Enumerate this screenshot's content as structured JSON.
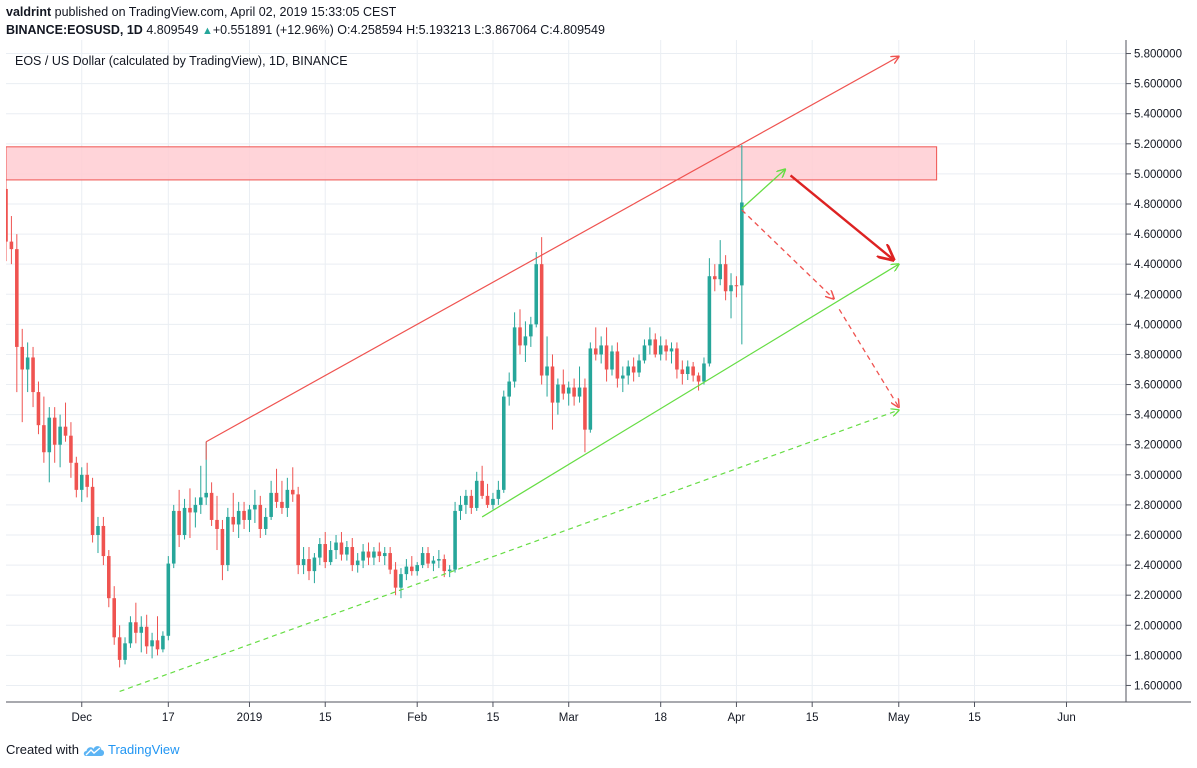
{
  "header": {
    "author": "valdrint",
    "published": "published on TradingView.com, April 02, 2019 15:33:05 CEST"
  },
  "ticker": {
    "symbol": "BINANCE:EOSUSD, 1D",
    "last": "4.809549",
    "change": "+0.551891 (+12.96%)",
    "o_label": "O:",
    "o": "4.258594",
    "h_label": "H:",
    "h": "5.193213",
    "l_label": "L:",
    "l": "3.867064",
    "c_label": "C:",
    "c": "4.809549",
    "up_color": "#26a69a"
  },
  "footer": {
    "created": "Created with",
    "brand": "TradingView",
    "logo_icon": "tradingview-cloud-icon"
  },
  "chart_data": {
    "type": "candlestick",
    "legend": "EOS / US Dollar (calculated by TradingView), 1D, BINANCE",
    "y_axis_side": "right",
    "ylim": [
      1.49,
      5.89
    ],
    "xlim": [
      "2018-11-17",
      "2019-06-12"
    ],
    "y_ticks": [
      "5.800000",
      "5.600000",
      "5.400000",
      "5.200000",
      "5.000000",
      "4.800000",
      "4.600000",
      "4.400000",
      "4.200000",
      "4.000000",
      "3.800000",
      "3.600000",
      "3.400000",
      "3.200000",
      "3.000000",
      "2.800000",
      "2.600000",
      "2.400000",
      "2.200000",
      "2.000000",
      "1.800000",
      "1.600000"
    ],
    "x_ticks": [
      {
        "date": "2018-12-01",
        "label": "Dec"
      },
      {
        "date": "2018-12-17",
        "label": "17"
      },
      {
        "date": "2019-01-01",
        "label": "2019"
      },
      {
        "date": "2019-01-15",
        "label": "15"
      },
      {
        "date": "2019-02-01",
        "label": "Feb"
      },
      {
        "date": "2019-02-15",
        "label": "15"
      },
      {
        "date": "2019-03-01",
        "label": "Mar"
      },
      {
        "date": "2019-03-18",
        "label": "18"
      },
      {
        "date": "2019-04-01",
        "label": "Apr"
      },
      {
        "date": "2019-04-15",
        "label": "15"
      },
      {
        "date": "2019-05-01",
        "label": "May"
      },
      {
        "date": "2019-05-15",
        "label": "15"
      },
      {
        "date": "2019-06-01",
        "label": "Jun"
      }
    ],
    "colors": {
      "up": "#26a69a",
      "down": "#ef5350",
      "resistance": "#ef5350",
      "support": "#66dd44",
      "zone_fill": "#ffcdd2"
    },
    "candles": [
      [
        "2018-11-17",
        4.9,
        4.97,
        4.42,
        4.55
      ],
      [
        "2018-11-18",
        4.55,
        4.72,
        4.4,
        4.5
      ],
      [
        "2018-11-19",
        4.5,
        4.6,
        3.55,
        3.85
      ],
      [
        "2018-11-20",
        3.85,
        3.97,
        3.35,
        3.7
      ],
      [
        "2018-11-21",
        3.7,
        3.88,
        3.55,
        3.78
      ],
      [
        "2018-11-22",
        3.78,
        3.85,
        3.45,
        3.55
      ],
      [
        "2018-11-23",
        3.55,
        3.62,
        3.27,
        3.33
      ],
      [
        "2018-11-24",
        3.33,
        3.52,
        3.08,
        3.15
      ],
      [
        "2018-11-25",
        3.15,
        3.45,
        2.95,
        3.38
      ],
      [
        "2018-11-26",
        3.38,
        3.45,
        3.08,
        3.2
      ],
      [
        "2018-11-27",
        3.2,
        3.4,
        3.05,
        3.32
      ],
      [
        "2018-11-28",
        3.32,
        3.48,
        3.22,
        3.26
      ],
      [
        "2018-11-29",
        3.26,
        3.35,
        2.98,
        3.08
      ],
      [
        "2018-11-30",
        3.08,
        3.12,
        2.85,
        2.9
      ],
      [
        "2018-12-01",
        2.9,
        3.05,
        2.82,
        3.0
      ],
      [
        "2018-12-02",
        3.0,
        3.08,
        2.85,
        2.92
      ],
      [
        "2018-12-03",
        2.92,
        2.98,
        2.55,
        2.6
      ],
      [
        "2018-12-04",
        2.6,
        2.72,
        2.48,
        2.66
      ],
      [
        "2018-12-05",
        2.66,
        2.72,
        2.4,
        2.46
      ],
      [
        "2018-12-06",
        2.46,
        2.5,
        2.12,
        2.18
      ],
      [
        "2018-12-07",
        2.18,
        2.26,
        1.87,
        1.92
      ],
      [
        "2018-12-08",
        1.92,
        2.0,
        1.72,
        1.77
      ],
      [
        "2018-12-09",
        1.77,
        1.92,
        1.74,
        1.88
      ],
      [
        "2018-12-10",
        1.88,
        2.06,
        1.85,
        2.02
      ],
      [
        "2018-12-11",
        2.02,
        2.15,
        1.88,
        1.95
      ],
      [
        "2018-12-12",
        1.95,
        2.06,
        1.82,
        1.99
      ],
      [
        "2018-12-13",
        1.99,
        2.07,
        1.81,
        1.86
      ],
      [
        "2018-12-14",
        1.86,
        1.95,
        1.78,
        1.9
      ],
      [
        "2018-12-15",
        1.9,
        2.06,
        1.8,
        1.84
      ],
      [
        "2018-12-16",
        1.84,
        1.96,
        1.82,
        1.93
      ],
      [
        "2018-12-17",
        1.93,
        2.46,
        1.9,
        2.41
      ],
      [
        "2018-12-18",
        2.41,
        2.8,
        2.38,
        2.76
      ],
      [
        "2018-12-19",
        2.76,
        2.9,
        2.52,
        2.6
      ],
      [
        "2018-12-20",
        2.6,
        2.84,
        2.57,
        2.78
      ],
      [
        "2018-12-21",
        2.78,
        2.91,
        2.58,
        2.75
      ],
      [
        "2018-12-22",
        2.75,
        2.85,
        2.65,
        2.8
      ],
      [
        "2018-12-23",
        2.8,
        3.06,
        2.74,
        2.85
      ],
      [
        "2018-12-24",
        2.85,
        3.22,
        2.8,
        2.88
      ],
      [
        "2018-12-25",
        2.88,
        2.95,
        2.66,
        2.7
      ],
      [
        "2018-12-26",
        2.7,
        2.86,
        2.5,
        2.64
      ],
      [
        "2018-12-27",
        2.64,
        2.7,
        2.3,
        2.4
      ],
      [
        "2018-12-28",
        2.4,
        2.78,
        2.36,
        2.72
      ],
      [
        "2018-12-29",
        2.72,
        2.88,
        2.62,
        2.67
      ],
      [
        "2018-12-30",
        2.67,
        2.82,
        2.58,
        2.76
      ],
      [
        "2018-12-31",
        2.76,
        2.82,
        2.64,
        2.7
      ],
      [
        "2019-01-01",
        2.7,
        2.8,
        2.62,
        2.77
      ],
      [
        "2019-01-02",
        2.77,
        2.9,
        2.68,
        2.8
      ],
      [
        "2019-01-03",
        2.8,
        2.86,
        2.58,
        2.64
      ],
      [
        "2019-01-04",
        2.64,
        2.78,
        2.6,
        2.72
      ],
      [
        "2019-01-05",
        2.72,
        2.96,
        2.7,
        2.88
      ],
      [
        "2019-01-06",
        2.88,
        3.04,
        2.78,
        2.82
      ],
      [
        "2019-01-07",
        2.82,
        2.96,
        2.74,
        2.78
      ],
      [
        "2019-01-08",
        2.78,
        2.98,
        2.72,
        2.9
      ],
      [
        "2019-01-09",
        2.9,
        3.05,
        2.82,
        2.87
      ],
      [
        "2019-01-10",
        2.87,
        2.92,
        2.34,
        2.4
      ],
      [
        "2019-01-11",
        2.4,
        2.52,
        2.34,
        2.44
      ],
      [
        "2019-01-12",
        2.44,
        2.52,
        2.3,
        2.36
      ],
      [
        "2019-01-13",
        2.36,
        2.48,
        2.28,
        2.45
      ],
      [
        "2019-01-14",
        2.45,
        2.58,
        2.4,
        2.54
      ],
      [
        "2019-01-15",
        2.54,
        2.62,
        2.38,
        2.42
      ],
      [
        "2019-01-16",
        2.42,
        2.56,
        2.4,
        2.5
      ],
      [
        "2019-01-17",
        2.5,
        2.6,
        2.44,
        2.55
      ],
      [
        "2019-01-18",
        2.55,
        2.62,
        2.43,
        2.47
      ],
      [
        "2019-01-19",
        2.47,
        2.56,
        2.43,
        2.52
      ],
      [
        "2019-01-20",
        2.52,
        2.58,
        2.36,
        2.4
      ],
      [
        "2019-01-21",
        2.4,
        2.48,
        2.35,
        2.43
      ],
      [
        "2019-01-22",
        2.43,
        2.54,
        2.38,
        2.49
      ],
      [
        "2019-01-23",
        2.49,
        2.55,
        2.4,
        2.45
      ],
      [
        "2019-01-24",
        2.45,
        2.52,
        2.4,
        2.49
      ],
      [
        "2019-01-25",
        2.49,
        2.55,
        2.42,
        2.46
      ],
      [
        "2019-01-26",
        2.46,
        2.52,
        2.4,
        2.48
      ],
      [
        "2019-01-27",
        2.48,
        2.52,
        2.34,
        2.37
      ],
      [
        "2019-01-28",
        2.37,
        2.42,
        2.2,
        2.25
      ],
      [
        "2019-01-29",
        2.25,
        2.38,
        2.18,
        2.34
      ],
      [
        "2019-01-30",
        2.34,
        2.44,
        2.3,
        2.39
      ],
      [
        "2019-01-31",
        2.39,
        2.46,
        2.33,
        2.36
      ],
      [
        "2019-02-01",
        2.36,
        2.42,
        2.33,
        2.4
      ],
      [
        "2019-02-02",
        2.4,
        2.52,
        2.38,
        2.48
      ],
      [
        "2019-02-03",
        2.48,
        2.52,
        2.38,
        2.41
      ],
      [
        "2019-02-04",
        2.41,
        2.46,
        2.36,
        2.43
      ],
      [
        "2019-02-05",
        2.43,
        2.5,
        2.38,
        2.44
      ],
      [
        "2019-02-06",
        2.44,
        2.47,
        2.32,
        2.36
      ],
      [
        "2019-02-07",
        2.36,
        2.4,
        2.32,
        2.37
      ],
      [
        "2019-02-08",
        2.37,
        2.82,
        2.35,
        2.76
      ],
      [
        "2019-02-09",
        2.76,
        2.86,
        2.7,
        2.8
      ],
      [
        "2019-02-10",
        2.8,
        2.9,
        2.74,
        2.86
      ],
      [
        "2019-02-11",
        2.86,
        2.9,
        2.74,
        2.78
      ],
      [
        "2019-02-12",
        2.78,
        3.02,
        2.76,
        2.96
      ],
      [
        "2019-02-13",
        2.96,
        3.06,
        2.84,
        2.86
      ],
      [
        "2019-02-14",
        2.86,
        2.94,
        2.78,
        2.8
      ],
      [
        "2019-02-15",
        2.8,
        2.88,
        2.77,
        2.84
      ],
      [
        "2019-02-16",
        2.84,
        2.96,
        2.8,
        2.9
      ],
      [
        "2019-02-17",
        2.9,
        3.56,
        2.88,
        3.52
      ],
      [
        "2019-02-18",
        3.52,
        3.68,
        3.46,
        3.62
      ],
      [
        "2019-02-19",
        3.62,
        4.08,
        3.58,
        3.98
      ],
      [
        "2019-02-20",
        3.98,
        4.1,
        3.8,
        3.86
      ],
      [
        "2019-02-21",
        3.86,
        4.02,
        3.75,
        3.92
      ],
      [
        "2019-02-22",
        3.92,
        4.05,
        3.85,
        4.0
      ],
      [
        "2019-02-23",
        4.0,
        4.48,
        3.98,
        4.4
      ],
      [
        "2019-02-24",
        4.4,
        4.58,
        3.6,
        3.66
      ],
      [
        "2019-02-25",
        3.66,
        3.92,
        3.52,
        3.72
      ],
      [
        "2019-02-26",
        3.72,
        3.8,
        3.3,
        3.48
      ],
      [
        "2019-02-27",
        3.48,
        3.64,
        3.4,
        3.6
      ],
      [
        "2019-02-28",
        3.6,
        3.7,
        3.5,
        3.54
      ],
      [
        "2019-03-01",
        3.54,
        3.62,
        3.46,
        3.58
      ],
      [
        "2019-03-02",
        3.58,
        3.64,
        3.46,
        3.52
      ],
      [
        "2019-03-03",
        3.52,
        3.72,
        3.48,
        3.58
      ],
      [
        "2019-03-04",
        3.58,
        3.64,
        3.15,
        3.3
      ],
      [
        "2019-03-05",
        3.3,
        3.88,
        3.28,
        3.84
      ],
      [
        "2019-03-06",
        3.84,
        3.98,
        3.76,
        3.8
      ],
      [
        "2019-03-07",
        3.8,
        3.92,
        3.74,
        3.86
      ],
      [
        "2019-03-08",
        3.86,
        3.98,
        3.62,
        3.7
      ],
      [
        "2019-03-09",
        3.7,
        3.86,
        3.66,
        3.82
      ],
      [
        "2019-03-10",
        3.82,
        3.88,
        3.58,
        3.64
      ],
      [
        "2019-03-11",
        3.64,
        3.72,
        3.55,
        3.66
      ],
      [
        "2019-03-12",
        3.66,
        3.76,
        3.6,
        3.72
      ],
      [
        "2019-03-13",
        3.72,
        3.78,
        3.62,
        3.68
      ],
      [
        "2019-03-14",
        3.68,
        3.8,
        3.65,
        3.76
      ],
      [
        "2019-03-15",
        3.76,
        3.9,
        3.74,
        3.86
      ],
      [
        "2019-03-16",
        3.86,
        3.98,
        3.8,
        3.9
      ],
      [
        "2019-03-17",
        3.9,
        3.94,
        3.78,
        3.8
      ],
      [
        "2019-03-18",
        3.8,
        3.92,
        3.76,
        3.86
      ],
      [
        "2019-03-19",
        3.86,
        3.9,
        3.76,
        3.82
      ],
      [
        "2019-03-20",
        3.82,
        3.88,
        3.74,
        3.84
      ],
      [
        "2019-03-21",
        3.84,
        3.88,
        3.64,
        3.7
      ],
      [
        "2019-03-22",
        3.7,
        3.76,
        3.6,
        3.67
      ],
      [
        "2019-03-23",
        3.67,
        3.76,
        3.63,
        3.72
      ],
      [
        "2019-03-24",
        3.72,
        3.75,
        3.62,
        3.66
      ],
      [
        "2019-03-25",
        3.66,
        3.68,
        3.56,
        3.62
      ],
      [
        "2019-03-26",
        3.62,
        3.78,
        3.6,
        3.74
      ],
      [
        "2019-03-27",
        3.74,
        4.44,
        3.72,
        4.32
      ],
      [
        "2019-03-28",
        4.32,
        4.4,
        4.22,
        4.3
      ],
      [
        "2019-03-29",
        4.3,
        4.56,
        4.26,
        4.4
      ],
      [
        "2019-03-30",
        4.4,
        4.46,
        4.16,
        4.22
      ],
      [
        "2019-03-31",
        4.22,
        4.34,
        4.04,
        4.26
      ],
      [
        "2019-04-01",
        4.26,
        4.32,
        4.18,
        4.259
      ],
      [
        "2019-04-02",
        4.259,
        5.193,
        3.867,
        4.81
      ]
    ],
    "resistance_line": {
      "from": [
        "2018-12-24",
        3.22
      ],
      "to": [
        "2019-04-02",
        5.2
      ],
      "projection_to": [
        "2019-05-01",
        5.78
      ]
    },
    "support_line": {
      "from": [
        "2019-02-13",
        2.72
      ],
      "to": [
        "2019-05-01",
        4.4
      ]
    },
    "lower_dashed_support": {
      "from": [
        "2018-12-08",
        1.56
      ],
      "to": [
        "2019-05-01",
        3.43
      ]
    },
    "resistance_zone": {
      "from": "2018-11-17",
      "to": "2019-05-08",
      "low": 4.96,
      "high": 5.18
    },
    "scenario_arrows": [
      {
        "style": "solid",
        "color": "#66dd44",
        "from": [
          "2019-04-02",
          4.77
        ],
        "to": [
          "2019-04-10",
          5.03
        ]
      },
      {
        "style": "solid",
        "color": "#dd2222",
        "from": [
          "2019-04-11",
          4.99
        ],
        "to": [
          "2019-04-30",
          4.43
        ]
      },
      {
        "style": "dashed",
        "color": "#ef5350",
        "from": [
          "2019-04-02",
          4.76
        ],
        "to": [
          "2019-04-19",
          4.17
        ]
      },
      {
        "style": "dashed",
        "color": "#ef5350",
        "from": [
          "2019-04-20",
          4.1
        ],
        "to": [
          "2019-05-01",
          3.45
        ]
      }
    ]
  }
}
